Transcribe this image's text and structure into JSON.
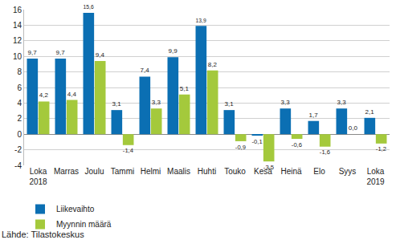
{
  "chart_data": {
    "type": "bar",
    "categories": [
      "Loka\n2018",
      "Marras",
      "Joulu",
      "Tammi",
      "Helmi",
      "Maalis",
      "Huhti",
      "Touko",
      "Kesä",
      "Heinä",
      "Elo",
      "Syys",
      "Loka\n2019"
    ],
    "series": [
      {
        "name": "Liikevaihto",
        "color": "#0b6fb3",
        "values": [
          9.7,
          9.7,
          15.6,
          3.1,
          7.4,
          9.9,
          13.9,
          3.1,
          -0.1,
          3.3,
          1.7,
          3.3,
          2.1
        ],
        "value_labels": [
          "9,7",
          "9,7",
          "15,6",
          "3,1",
          "7,4",
          "9,9",
          "13,9",
          "3,1",
          "-0,1",
          "3,3",
          "1,7",
          "3,3",
          "2,1"
        ]
      },
      {
        "name": "Myynnin määrä",
        "color": "#a4c93c",
        "values": [
          4.2,
          4.4,
          9.4,
          -1.4,
          3.3,
          5.1,
          8.2,
          -0.9,
          -3.5,
          -0.6,
          -1.6,
          0.0,
          -1.2
        ],
        "value_labels": [
          "4,2",
          "4,4",
          "9,4",
          "-1,4",
          "3,3",
          "5,1",
          "8,2",
          "-0,9",
          "-3,5",
          "-0,6",
          "-1,6",
          "0,0",
          "-1,2"
        ]
      }
    ],
    "ylim": [
      -4,
      16
    ],
    "yticks": [
      -4,
      -2,
      0,
      2,
      4,
      6,
      8,
      10,
      12,
      14,
      16
    ],
    "grid": true,
    "data_labels": true,
    "legend": "lower left",
    "source": "Lähde: Tilastokeskus"
  }
}
